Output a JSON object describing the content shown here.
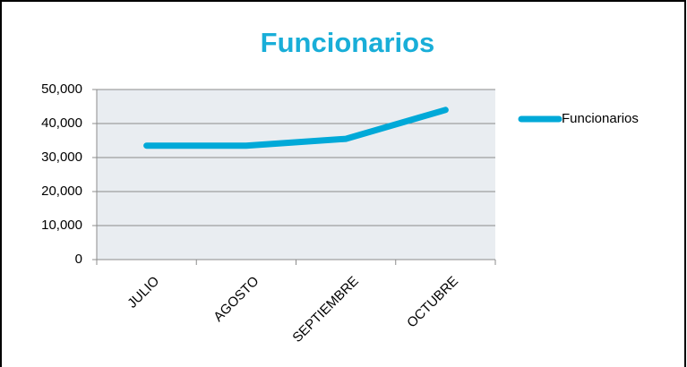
{
  "chart_data": {
    "type": "line",
    "title": "Funcionarios",
    "categories": [
      "JULIO",
      "AGOSTO",
      "SEPTIEMBRE",
      "OCTUBRE"
    ],
    "series": [
      {
        "name": "Funcionarios",
        "color": "#00a9d8",
        "values": [
          33500,
          33500,
          35500,
          44000
        ]
      }
    ],
    "ylim": [
      0,
      50000
    ],
    "yticks": [
      0,
      {
        "value": 10000,
        "label": "10,000"
      },
      {
        "value": 20000,
        "label": "20,000"
      },
      {
        "value": 30000,
        "label": "30,000"
      },
      {
        "value": 40000,
        "label": "40,000"
      },
      {
        "value": 50000,
        "label": "50,000"
      }
    ],
    "grid": true,
    "legend": "right"
  }
}
